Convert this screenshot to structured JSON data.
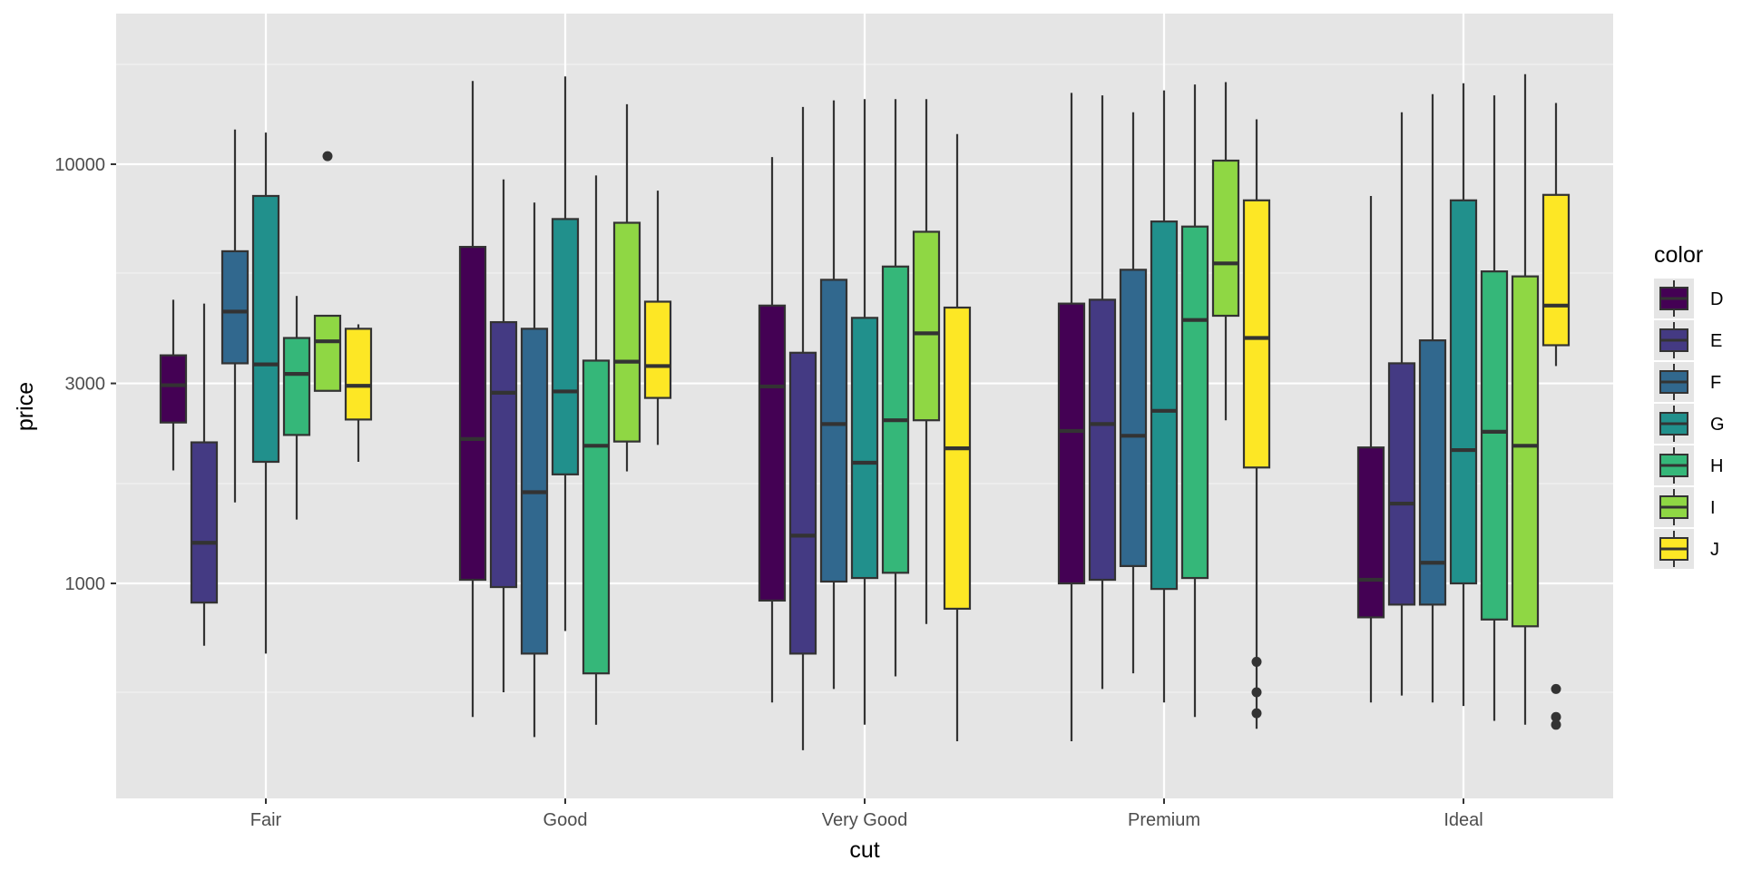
{
  "chart_data": {
    "type": "boxplot",
    "xlabel": "cut",
    "ylabel": "price",
    "y_scale": "log10",
    "ylim": [
      330,
      17500
    ],
    "y_ticks": [
      1000,
      3000,
      10000
    ],
    "y_tick_labels": [
      "1000",
      "3000",
      "10000"
    ],
    "y_minor_ticks": [
      550,
      1730,
      5500,
      17300
    ],
    "categories": [
      "Fair",
      "Good",
      "Very Good",
      "Premium",
      "Ideal"
    ],
    "legend": {
      "title": "color",
      "placement": "right"
    },
    "grid": true,
    "series": [
      {
        "name": "D",
        "color": "#440154",
        "boxes": [
          {
            "lower_whisker": 1860,
            "q1": 2420,
            "median": 2970,
            "q3": 3500,
            "upper_whisker": 4750,
            "outliers": []
          },
          {
            "lower_whisker": 480,
            "q1": 1020,
            "median": 2210,
            "q3": 6350,
            "upper_whisker": 15800,
            "outliers": []
          },
          {
            "lower_whisker": 520,
            "q1": 910,
            "median": 2950,
            "q3": 4600,
            "upper_whisker": 10400,
            "outliers": []
          },
          {
            "lower_whisker": 420,
            "q1": 1000,
            "median": 2310,
            "q3": 4650,
            "upper_whisker": 14800,
            "outliers": []
          },
          {
            "lower_whisker": 520,
            "q1": 830,
            "median": 1020,
            "q3": 2110,
            "upper_whisker": 8400,
            "outliers": []
          }
        ]
      },
      {
        "name": "E",
        "color": "#443A83",
        "boxes": [
          {
            "lower_whisker": 710,
            "q1": 900,
            "median": 1250,
            "q3": 2170,
            "upper_whisker": 4650,
            "outliers": []
          },
          {
            "lower_whisker": 550,
            "q1": 980,
            "median": 2850,
            "q3": 4200,
            "upper_whisker": 9200,
            "outliers": []
          },
          {
            "lower_whisker": 400,
            "q1": 680,
            "median": 1300,
            "q3": 3550,
            "upper_whisker": 13700,
            "outliers": []
          },
          {
            "lower_whisker": 560,
            "q1": 1020,
            "median": 2400,
            "q3": 4750,
            "upper_whisker": 14600,
            "outliers": []
          },
          {
            "lower_whisker": 540,
            "q1": 890,
            "median": 1550,
            "q3": 3350,
            "upper_whisker": 13300,
            "outliers": []
          }
        ]
      },
      {
        "name": "F",
        "color": "#31688E",
        "boxes": [
          {
            "lower_whisker": 1560,
            "q1": 3350,
            "median": 4450,
            "q3": 6200,
            "upper_whisker": 12100,
            "outliers": []
          },
          {
            "lower_whisker": 430,
            "q1": 680,
            "median": 1650,
            "q3": 4050,
            "upper_whisker": 8100,
            "outliers": []
          },
          {
            "lower_whisker": 560,
            "q1": 1010,
            "median": 2400,
            "q3": 5300,
            "upper_whisker": 14200,
            "outliers": []
          },
          {
            "lower_whisker": 610,
            "q1": 1100,
            "median": 2250,
            "q3": 5600,
            "upper_whisker": 13300,
            "outliers": []
          },
          {
            "lower_whisker": 520,
            "q1": 890,
            "median": 1120,
            "q3": 3800,
            "upper_whisker": 14700,
            "outliers": []
          }
        ]
      },
      {
        "name": "G",
        "color": "#21908C",
        "boxes": [
          {
            "lower_whisker": 680,
            "q1": 1950,
            "median": 3330,
            "q3": 8400,
            "upper_whisker": 11900,
            "outliers": []
          },
          {
            "lower_whisker": 770,
            "q1": 1820,
            "median": 2870,
            "q3": 7400,
            "upper_whisker": 16200,
            "outliers": []
          },
          {
            "lower_whisker": 460,
            "q1": 1030,
            "median": 1940,
            "q3": 4300,
            "upper_whisker": 14300,
            "outliers": []
          },
          {
            "lower_whisker": 520,
            "q1": 970,
            "median": 2580,
            "q3": 7300,
            "upper_whisker": 15000,
            "outliers": []
          },
          {
            "lower_whisker": 510,
            "q1": 1000,
            "median": 2080,
            "q3": 8200,
            "upper_whisker": 15600,
            "outliers": []
          }
        ]
      },
      {
        "name": "H",
        "color": "#35B779",
        "boxes": [
          {
            "lower_whisker": 1420,
            "q1": 2260,
            "median": 3160,
            "q3": 3850,
            "upper_whisker": 4850,
            "outliers": []
          },
          {
            "lower_whisker": 460,
            "q1": 610,
            "median": 2130,
            "q3": 3400,
            "upper_whisker": 9400,
            "outliers": []
          },
          {
            "lower_whisker": 600,
            "q1": 1060,
            "median": 2450,
            "q3": 5700,
            "upper_whisker": 14300,
            "outliers": []
          },
          {
            "lower_whisker": 480,
            "q1": 1030,
            "median": 4250,
            "q3": 7100,
            "upper_whisker": 15500,
            "outliers": []
          },
          {
            "lower_whisker": 470,
            "q1": 820,
            "median": 2300,
            "q3": 5550,
            "upper_whisker": 14600,
            "outliers": []
          }
        ]
      },
      {
        "name": "I",
        "color": "#8FD744",
        "boxes": [
          {
            "lower_whisker": 2880,
            "q1": 2880,
            "median": 3780,
            "q3": 4350,
            "upper_whisker": 4350,
            "outliers": [
              10450
            ]
          },
          {
            "lower_whisker": 1850,
            "q1": 2180,
            "median": 3380,
            "q3": 7250,
            "upper_whisker": 13900,
            "outliers": []
          },
          {
            "lower_whisker": 800,
            "q1": 2450,
            "median": 3950,
            "q3": 6900,
            "upper_whisker": 14300,
            "outliers": []
          },
          {
            "lower_whisker": 2450,
            "q1": 4350,
            "median": 5800,
            "q3": 10200,
            "upper_whisker": 15700,
            "outliers": []
          },
          {
            "lower_whisker": 460,
            "q1": 790,
            "median": 2130,
            "q3": 5400,
            "upper_whisker": 16400,
            "outliers": []
          }
        ]
      },
      {
        "name": "J",
        "color": "#FDE725",
        "boxes": [
          {
            "lower_whisker": 1950,
            "q1": 2460,
            "median": 2960,
            "q3": 4050,
            "upper_whisker": 4150,
            "outliers": []
          },
          {
            "lower_whisker": 2140,
            "q1": 2770,
            "median": 3300,
            "q3": 4700,
            "upper_whisker": 8650,
            "outliers": []
          },
          {
            "lower_whisker": 420,
            "q1": 870,
            "median": 2100,
            "q3": 4550,
            "upper_whisker": 11800,
            "outliers": []
          },
          {
            "lower_whisker": 450,
            "q1": 1890,
            "median": 3850,
            "q3": 8200,
            "upper_whisker": 12800,
            "outliers": [
              650,
              550,
              490
            ]
          },
          {
            "lower_whisker": 3300,
            "q1": 3700,
            "median": 4600,
            "q3": 8450,
            "upper_whisker": 14000,
            "outliers": [
              560,
              480,
              460
            ]
          }
        ]
      }
    ]
  }
}
